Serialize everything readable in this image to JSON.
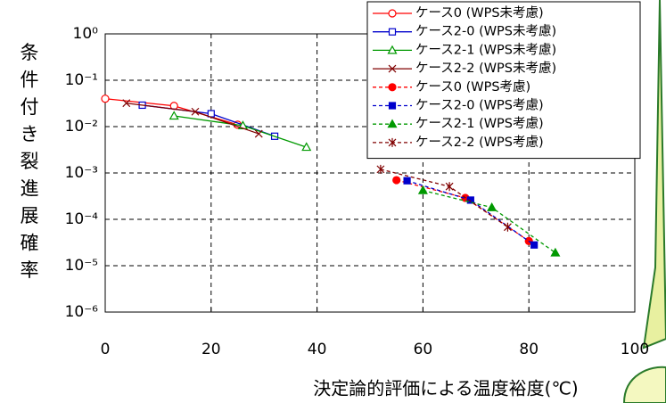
{
  "chart_data": {
    "type": "line",
    "log_y": true,
    "grid": true,
    "xlabel": "決定論的評価による温度裕度(℃)",
    "ylabel": "条件付き裂進展確率",
    "xlim": [
      0,
      100
    ],
    "xticks": [
      0,
      20,
      40,
      60,
      80,
      100
    ],
    "ylim": [
      1e-06,
      1
    ],
    "yticks": [
      {
        "value": 1,
        "label": "10⁰"
      },
      {
        "value": 0.1,
        "label": "10⁻¹"
      },
      {
        "value": 0.01,
        "label": "10⁻²"
      },
      {
        "value": 0.001,
        "label": "10⁻³"
      },
      {
        "value": 0.0001,
        "label": "10⁻⁴"
      },
      {
        "value": 1e-05,
        "label": "10⁻⁵"
      },
      {
        "value": 1e-06,
        "label": "10⁻⁶"
      }
    ],
    "legend": "upper-right",
    "series": [
      {
        "name": "ケース0  (WPS未考慮)",
        "color": "#ff0000",
        "marker": "circle-open",
        "dashed": false,
        "x": [
          0,
          13,
          25
        ],
        "values": [
          0.04,
          0.028,
          0.011
        ]
      },
      {
        "name": "ケース2-0 (WPS未考慮)",
        "color": "#0000cc",
        "marker": "square-open",
        "dashed": false,
        "x": [
          7,
          20,
          32
        ],
        "values": [
          0.029,
          0.019,
          0.0062
        ]
      },
      {
        "name": "ケース2-1 (WPS未考慮)",
        "color": "#009900",
        "marker": "triangle-open",
        "dashed": false,
        "x": [
          13,
          26,
          38
        ],
        "values": [
          0.017,
          0.0105,
          0.0036
        ]
      },
      {
        "name": "ケース2-2 (WPS未考慮)",
        "color": "#800000",
        "marker": "x",
        "dashed": false,
        "x": [
          4,
          17,
          29
        ],
        "values": [
          0.032,
          0.021,
          0.007
        ]
      },
      {
        "name": "ケース0 (WPS考慮)",
        "color": "#ff0000",
        "marker": "circle",
        "dashed": true,
        "x": [
          55,
          68,
          80
        ],
        "values": [
          0.0007,
          0.00029,
          3.4e-05
        ]
      },
      {
        "name": "ケース2-0 (WPS考慮)",
        "color": "#0000cc",
        "marker": "square",
        "dashed": true,
        "x": [
          57,
          69,
          81
        ],
        "values": [
          0.00068,
          0.00026,
          2.8e-05
        ]
      },
      {
        "name": "ケース2-1 (WPS考慮)",
        "color": "#009900",
        "marker": "triangle",
        "dashed": true,
        "x": [
          60,
          73,
          85
        ],
        "values": [
          0.00042,
          0.00018,
          1.9e-05
        ]
      },
      {
        "name": "ケース2-2 (WPS考慮)",
        "color": "#800000",
        "marker": "asterisk",
        "dashed": true,
        "x": [
          52,
          65,
          76
        ],
        "values": [
          0.0012,
          0.00051,
          6.8e-05
        ]
      }
    ]
  }
}
